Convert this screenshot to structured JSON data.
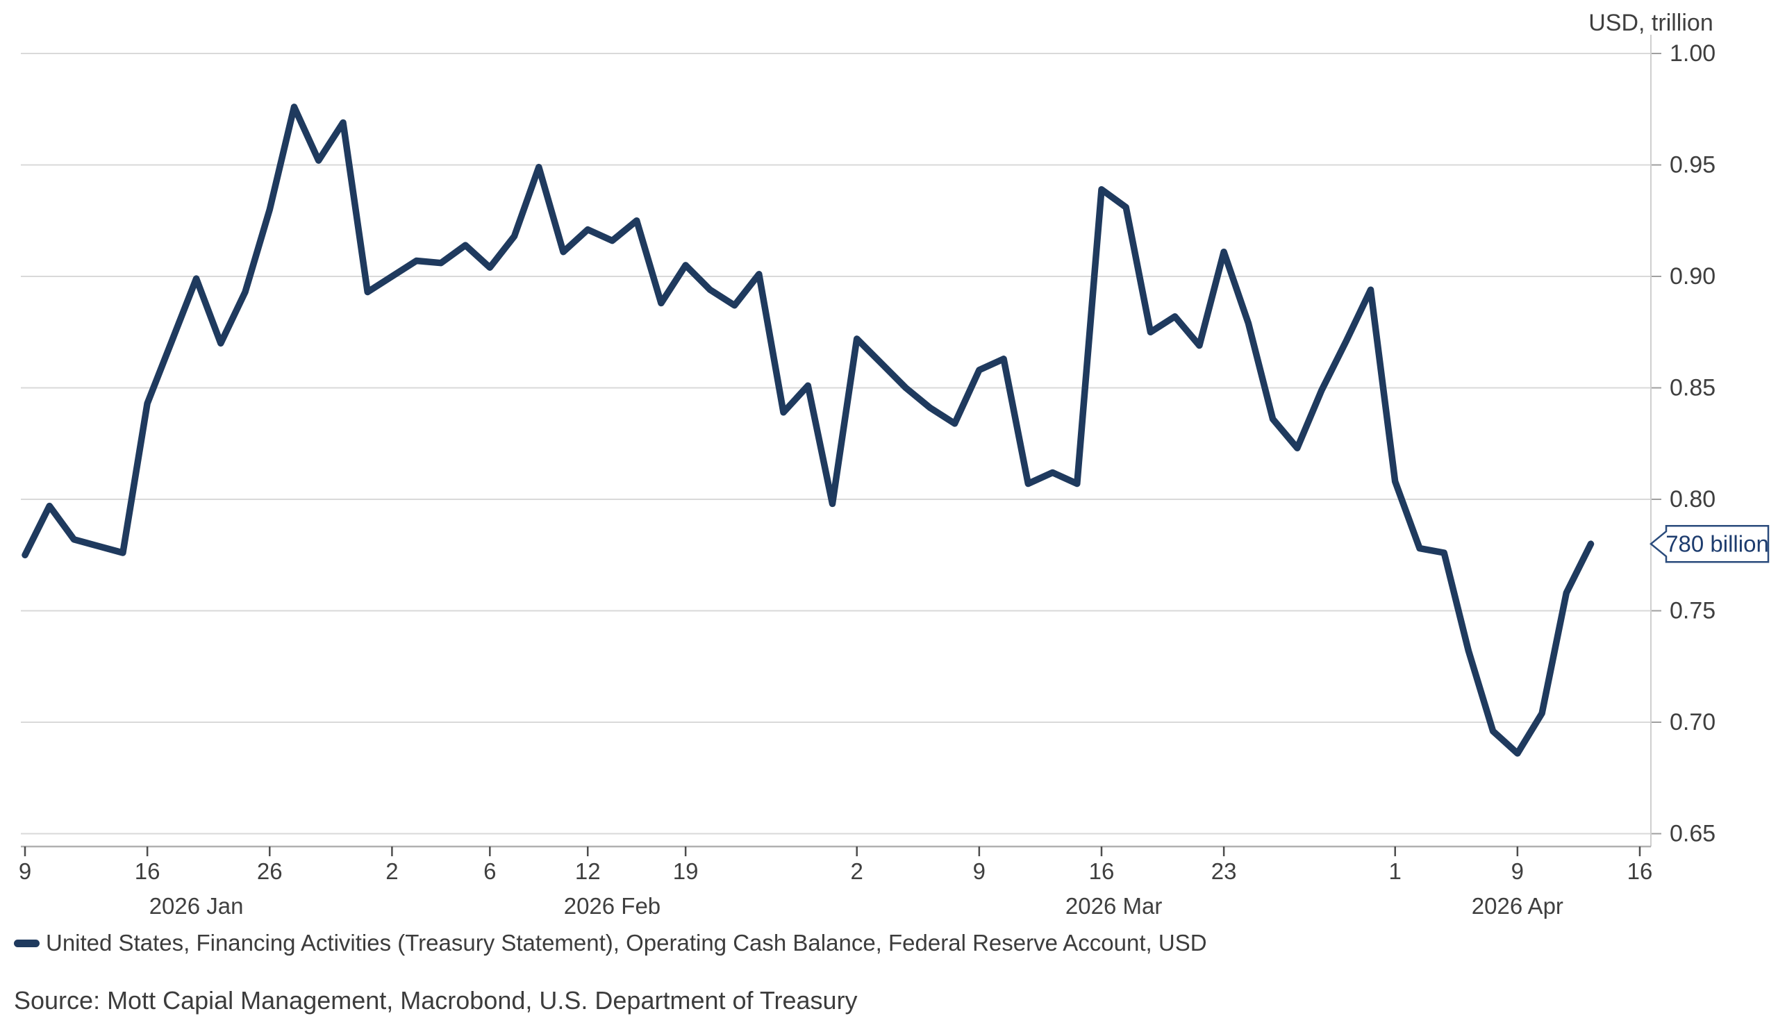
{
  "header": {
    "unit_label": "USD, trillion"
  },
  "colors": {
    "line": "#1f3a5e",
    "grid": "#d9d9d9",
    "bottom_axis": "#b0b0b0",
    "right_axis": "#cfcfcf",
    "x_tick": "#4d4d4d",
    "y_tick": "#9f9f9f",
    "axis_text": "#3f3f3f",
    "callout_border": "#2a4b7c",
    "callout_text": "#1d3c6e",
    "callout_fill": "#ffffff"
  },
  "chart_data": {
    "type": "line",
    "title": "",
    "xlabel": "",
    "ylabel": "USD, trillion",
    "grid": true,
    "legend_position": "bottom",
    "ylim": [
      0.65,
      1.0
    ],
    "y_ticks": [
      "0.65",
      "0.70",
      "0.75",
      "0.80",
      "0.85",
      "0.90",
      "0.95",
      "1.00"
    ],
    "series": [
      {
        "name": "United States, Financing Activities (Treasury Statement), Operating Cash Balance, Federal Reserve Account, USD",
        "x": [
          "Jan 9",
          "Jan 12",
          "Jan 13",
          "Jan 14",
          "Jan 15",
          "Jan 16",
          "Jan 20",
          "Jan 21",
          "Jan 22",
          "Jan 23",
          "Jan 26",
          "Jan 27",
          "Jan 28",
          "Jan 29",
          "Jan 30",
          "Feb 2",
          "Feb 3",
          "Feb 4",
          "Feb 5",
          "Feb 6",
          "Feb 9",
          "Feb 10",
          "Feb 11",
          "Feb 12",
          "Feb 13",
          "Feb 17",
          "Feb 18",
          "Feb 19",
          "Feb 20",
          "Feb 23",
          "Feb 24",
          "Feb 25",
          "Feb 26",
          "Feb 27",
          "Mar 2",
          "Mar 3",
          "Mar 4",
          "Mar 5",
          "Mar 6",
          "Mar 9",
          "Mar 10",
          "Mar 11",
          "Mar 12",
          "Mar 13",
          "Mar 16",
          "Mar 17",
          "Mar 18",
          "Mar 19",
          "Mar 20",
          "Mar 23",
          "Mar 24",
          "Mar 25",
          "Mar 26",
          "Mar 27",
          "Mar 30",
          "Mar 31",
          "Apr 1",
          "Apr 2",
          "Apr 6",
          "Apr 7",
          "Apr 8",
          "Apr 9",
          "Apr 10",
          "Apr 13",
          "Apr 14"
        ],
        "values": [
          0.775,
          0.797,
          0.782,
          0.779,
          0.776,
          0.843,
          0.871,
          0.899,
          0.87,
          0.893,
          0.93,
          0.976,
          0.952,
          0.969,
          0.893,
          0.9,
          0.907,
          0.906,
          0.914,
          0.904,
          0.918,
          0.949,
          0.911,
          0.921,
          0.916,
          0.925,
          0.888,
          0.905,
          0.894,
          0.887,
          0.901,
          0.839,
          0.851,
          0.798,
          0.872,
          0.861,
          0.85,
          0.841,
          0.834,
          0.858,
          0.863,
          0.807,
          0.812,
          0.807,
          0.939,
          0.931,
          0.875,
          0.882,
          0.869,
          0.911,
          0.879,
          0.836,
          0.823,
          0.849,
          0.871,
          0.894,
          0.808,
          0.778,
          0.776,
          0.732,
          0.696,
          0.686,
          0.704,
          0.758,
          0.78
        ]
      }
    ],
    "x_tick_marks": [
      {
        "label": "9",
        "index": 0
      },
      {
        "label": "16",
        "index": 5
      },
      {
        "label": "26",
        "index": 10
      },
      {
        "label": "2",
        "index": 15
      },
      {
        "label": "6",
        "index": 19
      },
      {
        "label": "12",
        "index": 23
      },
      {
        "label": "19",
        "index": 27
      },
      {
        "label": "2",
        "index": 34
      },
      {
        "label": "9",
        "index": 39
      },
      {
        "label": "16",
        "index": 44
      },
      {
        "label": "23",
        "index": 49
      },
      {
        "label": "1",
        "index": 56
      },
      {
        "label": "9",
        "index": 61
      },
      {
        "label": "16",
        "index": 66
      }
    ],
    "month_labels": [
      {
        "label": "2026 Jan",
        "center_index": 7
      },
      {
        "label": "2026 Feb",
        "center_index": 24
      },
      {
        "label": "2026 Mar",
        "center_index": 44.5
      },
      {
        "label": "2026 Apr",
        "center_index": 61
      }
    ],
    "last_point_callout": "780 billion"
  },
  "legend": {
    "label": "United States, Financing Activities (Treasury Statement), Operating Cash Balance, Federal Reserve Account, USD"
  },
  "source": {
    "text": "Source: Mott Capial Management, Macrobond, U.S. Department of Treasury"
  }
}
